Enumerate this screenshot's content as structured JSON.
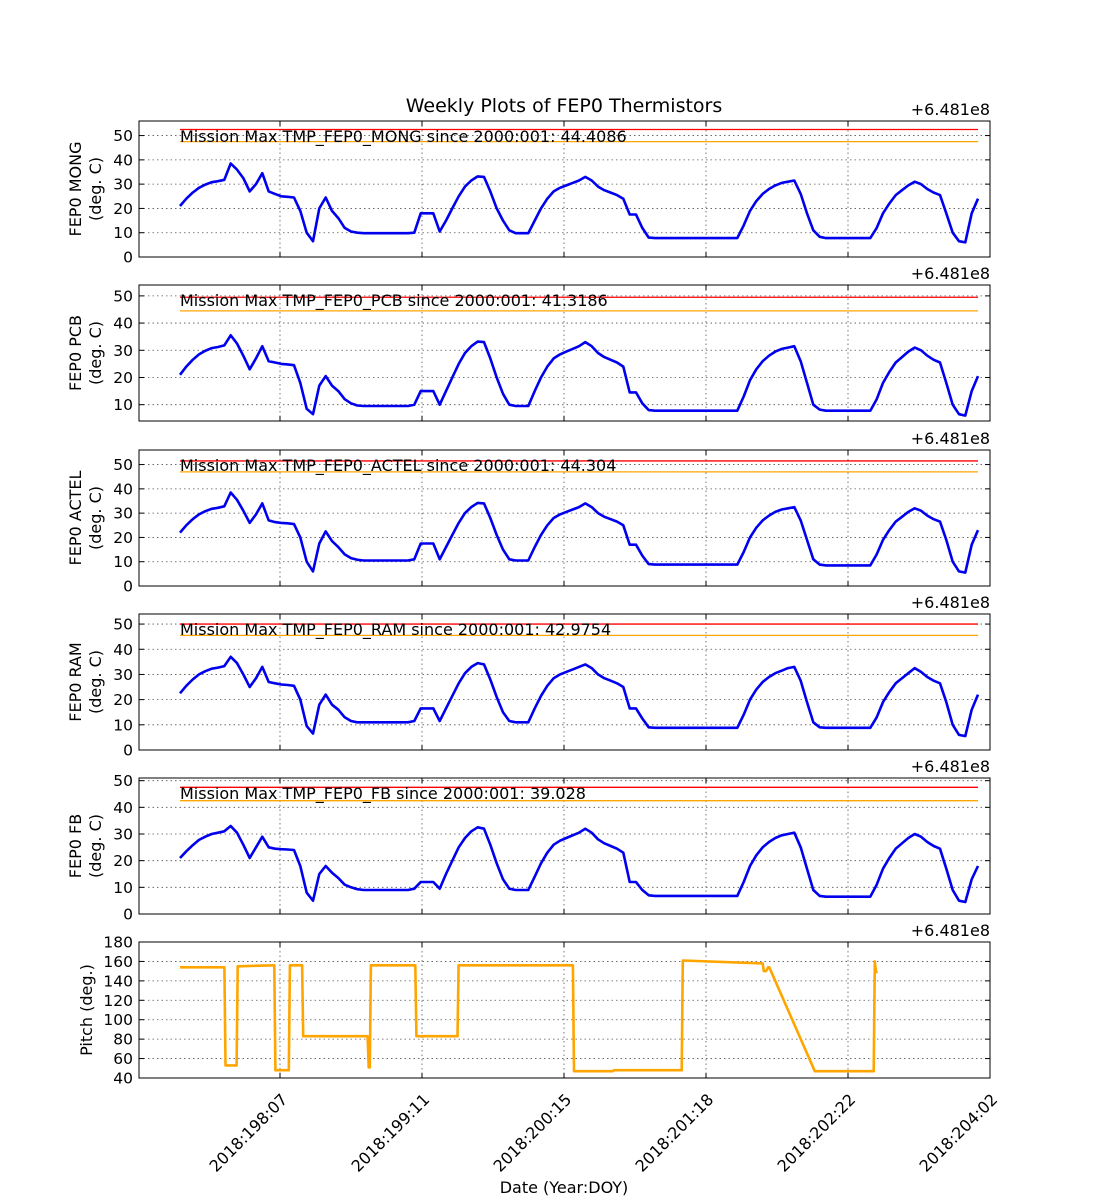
{
  "figure": {
    "title": "Weekly Plots of FEP0 Thermistors",
    "xlabel": "Date (Year:DOY)",
    "offset_label": "+6.481e8"
  },
  "colors": {
    "temperature": "#0000ee",
    "pitch": "#ffa500",
    "red_limit": "#ff0000",
    "yellow_limit": "#ffa500",
    "grid": "#555555"
  },
  "x_ticks": [
    "2018:198:07",
    "2018:199:11",
    "2018:200:15",
    "2018:201:18",
    "2018:202:22",
    "2018:204:02"
  ],
  "chart_data": [
    {
      "type": "line",
      "ylabel": [
        "FEP0 MONG",
        "(deg. C)"
      ],
      "annotation": "Mission Max TMP_FEP0_MONG since 2000:001: 44.4086",
      "ylim": [
        0,
        56
      ],
      "yticks": [
        0,
        10,
        20,
        30,
        40,
        50
      ],
      "limits": {
        "red": 52.5,
        "yellow": 47.5
      },
      "series": [
        {
          "values": [
            21,
            24,
            26.5,
            28.5,
            29.8,
            30.8,
            31.2,
            31.8,
            38.5,
            36,
            32.5,
            27,
            30,
            34.5,
            27,
            26,
            25,
            24.8,
            24.5,
            19,
            10,
            6.5,
            20,
            24.5,
            19,
            16,
            12,
            10.5,
            10,
            9.8,
            9.8,
            9.8,
            9.8,
            9.8,
            9.8,
            9.8,
            9.8,
            10,
            18,
            18,
            18,
            10.5,
            15,
            20,
            25,
            29,
            31.5,
            33.2,
            33,
            27,
            20,
            15,
            11,
            9.8,
            9.8,
            9.8,
            15,
            20,
            24,
            27,
            28.5,
            29.5,
            30.5,
            31.5,
            33,
            31.5,
            29,
            27.5,
            26.5,
            25.5,
            24,
            17.5,
            17.5,
            12,
            8,
            7.8,
            7.8,
            7.8,
            7.8,
            7.8,
            7.8,
            7.8,
            7.8,
            7.8,
            7.8,
            7.8,
            7.8,
            7.8,
            7.8,
            13,
            19,
            23,
            26,
            28,
            29.5,
            30.5,
            31,
            31.5,
            26,
            18,
            11,
            8.3,
            7.8,
            7.8,
            7.8,
            7.8,
            7.8,
            7.8,
            7.8,
            7.8,
            12,
            18,
            22,
            25.5,
            27.5,
            29.5,
            31,
            30,
            28,
            26.5,
            25.5,
            18,
            10,
            6.5,
            6,
            18,
            24
          ]
        }
      ]
    },
    {
      "type": "line",
      "ylabel": [
        "FEP0 PCB",
        "(deg. C)"
      ],
      "annotation": "Mission Max TMP_FEP0_PCB since 2000:001: 41.3186",
      "ylim": [
        4,
        54
      ],
      "yticks": [
        10,
        20,
        30,
        40,
        50
      ],
      "limits": {
        "red": 49.5,
        "yellow": 44.5
      },
      "series": [
        {
          "values": [
            21,
            24,
            26.5,
            28.5,
            29.8,
            30.8,
            31.2,
            31.8,
            35.5,
            32.5,
            28,
            23,
            27,
            31.5,
            26,
            25.5,
            25,
            24.8,
            24.5,
            18,
            8.5,
            6.5,
            17,
            20.5,
            17,
            15,
            12,
            10.5,
            9.7,
            9.5,
            9.5,
            9.5,
            9.5,
            9.5,
            9.5,
            9.5,
            9.5,
            10,
            15,
            15,
            15,
            10,
            15,
            20,
            25,
            29,
            31.5,
            33.2,
            33,
            27,
            20,
            14,
            10,
            9.5,
            9.5,
            9.5,
            15,
            20,
            24,
            27,
            28.5,
            29.5,
            30.5,
            31.5,
            33,
            31.5,
            29,
            27.5,
            26.5,
            25.5,
            24,
            14.5,
            14.5,
            10.5,
            8,
            7.8,
            7.8,
            7.8,
            7.8,
            7.8,
            7.8,
            7.8,
            7.8,
            7.8,
            7.8,
            7.8,
            7.8,
            7.8,
            7.8,
            13,
            19,
            23,
            26,
            28,
            29.5,
            30.5,
            31,
            31.5,
            26,
            18,
            10,
            8.2,
            7.8,
            7.8,
            7.8,
            7.8,
            7.8,
            7.8,
            7.8,
            7.8,
            12,
            18,
            22,
            25.5,
            27.5,
            29.5,
            31,
            30,
            28,
            26.5,
            25.5,
            18,
            10,
            6.5,
            6,
            15,
            20.5
          ]
        }
      ]
    },
    {
      "type": "line",
      "ylabel": [
        "FEP0 ACTEL",
        "(deg. C)"
      ],
      "annotation": "Mission Max TMP_FEP0_ACTEL since 2000:001: 44.304",
      "ylim": [
        0,
        56
      ],
      "yticks": [
        0,
        10,
        20,
        30,
        40,
        50
      ],
      "limits": {
        "red": 51.5,
        "yellow": 47
      },
      "series": [
        {
          "values": [
            22,
            25,
            27.5,
            29.5,
            30.8,
            31.8,
            32.2,
            32.8,
            38.5,
            35.5,
            31,
            26,
            29.5,
            34,
            27,
            26.3,
            26,
            25.8,
            25.5,
            20,
            10,
            6,
            17.5,
            22.5,
            18.5,
            16,
            13,
            11.5,
            10.8,
            10.5,
            10.5,
            10.5,
            10.5,
            10.5,
            10.5,
            10.5,
            10.5,
            11,
            17.5,
            17.5,
            17.5,
            11,
            16,
            21,
            26,
            30,
            32.5,
            34.2,
            34,
            28,
            21,
            15,
            11,
            10.5,
            10.5,
            10.5,
            16,
            21,
            25,
            28,
            29.5,
            30.5,
            31.5,
            32.5,
            34,
            32.5,
            30,
            28.5,
            27.5,
            26.5,
            25,
            17,
            17,
            12.5,
            9,
            8.8,
            8.8,
            8.8,
            8.8,
            8.8,
            8.8,
            8.8,
            8.8,
            8.8,
            8.8,
            8.8,
            8.8,
            8.8,
            8.8,
            14,
            20,
            24,
            27,
            29,
            30.5,
            31.5,
            32,
            32.5,
            27,
            19,
            11,
            8.8,
            8.5,
            8.5,
            8.5,
            8.5,
            8.5,
            8.5,
            8.5,
            8.5,
            13,
            19,
            23,
            26.5,
            28.5,
            30.5,
            32,
            31,
            29,
            27.5,
            26.5,
            19,
            10,
            6,
            5.5,
            17,
            23
          ]
        }
      ]
    },
    {
      "type": "line",
      "ylabel": [
        "FEP0 RAM",
        "(deg. C)"
      ],
      "annotation": "Mission Max TMP_FEP0_RAM since 2000:001: 42.9754",
      "ylim": [
        0,
        54
      ],
      "yticks": [
        0,
        10,
        20,
        30,
        40,
        50
      ],
      "limits": {
        "red": 50,
        "yellow": 45.5
      },
      "series": [
        {
          "values": [
            22.5,
            25.5,
            28,
            30,
            31.3,
            32.3,
            32.7,
            33.3,
            37,
            34.5,
            30,
            25,
            28.5,
            33,
            27,
            26.5,
            26,
            25.8,
            25.5,
            20,
            9.5,
            6.5,
            18,
            22,
            18,
            16,
            13,
            11.5,
            11,
            11,
            11,
            11,
            11,
            11,
            11,
            11,
            11,
            11.5,
            16.5,
            16.5,
            16.5,
            11.5,
            16.5,
            21.5,
            26.5,
            30.5,
            33,
            34.5,
            34,
            28,
            21,
            15,
            11.5,
            11,
            11,
            11,
            16.5,
            21.5,
            25.5,
            28.5,
            30,
            31,
            32,
            33,
            34,
            32.5,
            30,
            28.5,
            27.5,
            26.5,
            25,
            16.5,
            16.5,
            12.5,
            9,
            8.8,
            8.8,
            8.8,
            8.8,
            8.8,
            8.8,
            8.8,
            8.8,
            8.8,
            8.8,
            8.8,
            8.8,
            8.8,
            8.8,
            14,
            20,
            24,
            27,
            29,
            30.5,
            31.5,
            32.5,
            33,
            27.5,
            19,
            11,
            9,
            8.8,
            8.8,
            8.8,
            8.8,
            8.8,
            8.8,
            8.8,
            8.8,
            13,
            19,
            23,
            26.5,
            28.5,
            30.5,
            32.5,
            31,
            29,
            27.5,
            26.5,
            19,
            10,
            6,
            5.5,
            16,
            22
          ]
        }
      ]
    },
    {
      "type": "line",
      "ylabel": [
        "FEP0 FB",
        "(deg. C)"
      ],
      "annotation": "Mission Max TMP_FEP0_FB since 2000:001: 39.028",
      "ylim": [
        0,
        51
      ],
      "yticks": [
        0,
        10,
        20,
        30,
        40,
        50
      ],
      "limits": {
        "red": 47.5,
        "yellow": 42.5
      },
      "series": [
        {
          "values": [
            21,
            23.5,
            25.8,
            27.8,
            29,
            30,
            30.5,
            31,
            33,
            30.5,
            26,
            21,
            25,
            29,
            25,
            24.5,
            24.3,
            24.2,
            24,
            18,
            8,
            5,
            15,
            18,
            15.5,
            13.5,
            11,
            10,
            9.3,
            9,
            9,
            9,
            9,
            9,
            9,
            9,
            9,
            9.5,
            12,
            12,
            12,
            9.5,
            15,
            20,
            25,
            28.5,
            31,
            32.5,
            32,
            26,
            19,
            13,
            9.5,
            9,
            9,
            9,
            14,
            19,
            23,
            26,
            27.5,
            28.5,
            29.5,
            30.5,
            32,
            30.5,
            28,
            26.5,
            25.5,
            24.5,
            23,
            12,
            12,
            9,
            7,
            6.8,
            6.8,
            6.8,
            6.8,
            6.8,
            6.8,
            6.8,
            6.8,
            6.8,
            6.8,
            6.8,
            6.8,
            6.8,
            6.8,
            12,
            18,
            22,
            25,
            27,
            28.5,
            29.5,
            30,
            30.5,
            25,
            17,
            9,
            6.8,
            6.5,
            6.5,
            6.5,
            6.5,
            6.5,
            6.5,
            6.5,
            6.5,
            11,
            17,
            21,
            24.5,
            26.5,
            28.5,
            30,
            29,
            27,
            25.5,
            24.5,
            17,
            9,
            5,
            4.5,
            13,
            18
          ]
        }
      ]
    },
    {
      "type": "line",
      "ylabel": [
        "Pitch (deg.)"
      ],
      "annotation": "",
      "ylim": [
        40,
        180
      ],
      "yticks": [
        40,
        60,
        80,
        100,
        120,
        140,
        160,
        180
      ],
      "limits": null,
      "series": [
        {
          "x": [
            0,
            0.4,
            0.41,
            0.51,
            0.52,
            0.85,
            0.86,
            0.98,
            0.99,
            1.1,
            1.11,
            1.69,
            1.7,
            1.71,
            1.72,
            2.12,
            2.13,
            2.5,
            2.51,
            2.84,
            2.85,
            3.54,
            3.55,
            3.9,
            3.91,
            4.52,
            4.53,
            5.25,
            5.26,
            5.28,
            5.3,
            5.31,
            5.72,
            5.73,
            5.74,
            5.75,
            6.25,
            6.26,
            6.27,
            6.28
          ],
          "values": [
            154,
            154,
            53,
            53,
            155,
            156,
            48,
            48,
            156,
            156,
            83,
            83,
            51,
            51,
            156,
            156,
            83,
            83,
            156,
            156,
            156,
            156,
            47,
            47,
            48,
            48,
            161,
            158,
            150,
            150,
            154,
            154,
            47,
            47,
            47,
            47,
            47,
            160,
            150,
            148
          ]
        }
      ]
    }
  ]
}
